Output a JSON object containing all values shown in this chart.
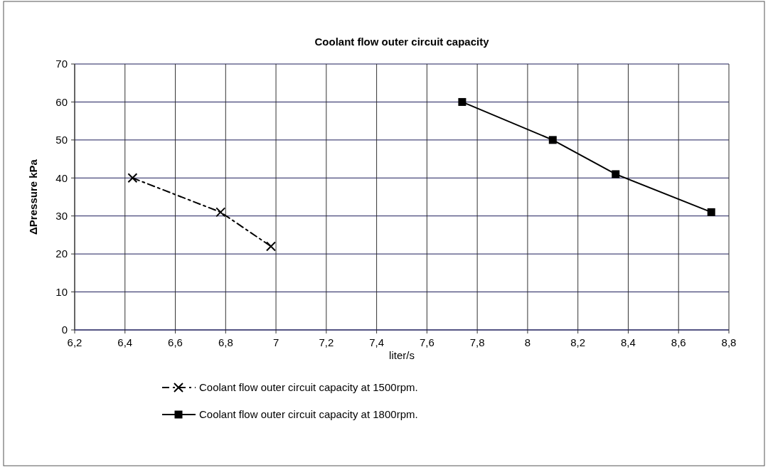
{
  "chart_data": {
    "type": "line",
    "title": "Coolant flow outer circuit capacity",
    "xlabel": "liter/s",
    "ylabel": "ΔPressure  kPa",
    "xlim": [
      6.2,
      8.8
    ],
    "xticks": [
      {
        "value": 6.2,
        "label": "6,2"
      },
      {
        "value": 6.4,
        "label": "6,4"
      },
      {
        "value": 6.6,
        "label": "6,6"
      },
      {
        "value": 6.8,
        "label": "6,8"
      },
      7,
      {
        "value": 7.2,
        "label": "7,2"
      },
      {
        "value": 7.4,
        "label": "7,4"
      },
      {
        "value": 7.6,
        "label": "7,6"
      },
      {
        "value": 7.8,
        "label": "7,8"
      },
      8,
      {
        "value": 8.2,
        "label": "8,2"
      },
      {
        "value": 8.4,
        "label": "8,4"
      },
      {
        "value": 8.6,
        "label": "8,6"
      },
      {
        "value": 8.8,
        "label": "8,8"
      }
    ],
    "ylim": [
      0,
      70
    ],
    "yticks": [
      0,
      10,
      20,
      30,
      40,
      50,
      60,
      70
    ],
    "grid": true,
    "legend": "bottom",
    "series": [
      {
        "name": "Coolant flow outer circuit capacity at 1500rpm.",
        "color": "#000000",
        "marker": "cross",
        "line_style": "dashed",
        "x": [
          6.43,
          6.78,
          6.98
        ],
        "values": [
          40,
          31,
          22
        ]
      },
      {
        "name": "Coolant flow outer circuit capacity at 1800rpm.",
        "color": "#000000",
        "marker": "square",
        "line_style": "solid",
        "x": [
          7.74,
          8.1,
          8.35,
          8.73
        ],
        "values": [
          60,
          50,
          41,
          31
        ]
      }
    ]
  }
}
